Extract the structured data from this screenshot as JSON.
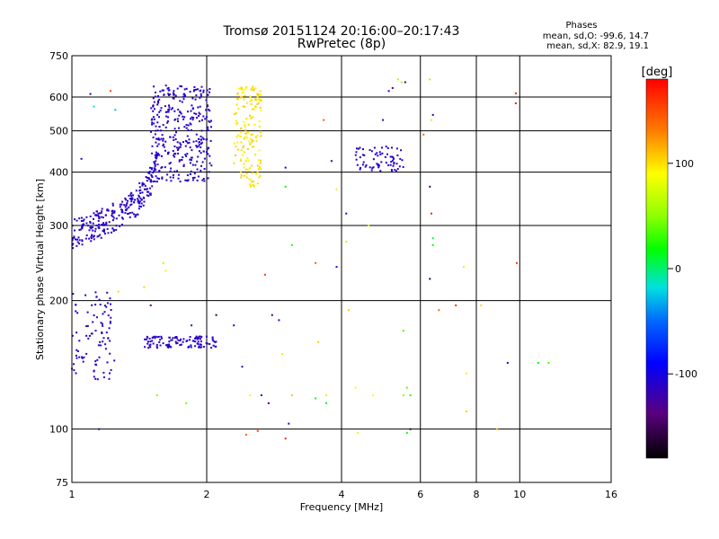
{
  "chart_data": {
    "type": "scatter",
    "title": "Tromsø 20151124 20:16:00–20:17:43",
    "subtitle": "RwPretec (8p)",
    "stats_title": "Phases",
    "stats_o": "mean, sd,O: -99.6, 14.7",
    "stats_x": "mean, sd,X:  82.9, 19.1",
    "xlabel": "Frequency [MHz]",
    "ylabel": "Stationary phase Virtual Height [km]",
    "x_scale": "log",
    "y_scale": "log",
    "xlim": [
      1,
      16
    ],
    "ylim": [
      75,
      750
    ],
    "x_ticks": [
      1,
      2,
      4,
      6,
      8,
      10,
      16
    ],
    "x_tick_labels": [
      "1",
      "2",
      "4",
      "6",
      "8",
      "10",
      "16"
    ],
    "y_ticks": [
      75,
      100,
      200,
      300,
      400,
      500,
      600,
      750
    ],
    "y_tick_labels": [
      "75",
      "100",
      "200",
      "300",
      "400",
      "500",
      "600",
      "750"
    ],
    "grid": true,
    "colorbar": {
      "label": "[deg]",
      "range": [
        -180,
        180
      ],
      "ticks": [
        100,
        0,
        -100
      ],
      "tick_labels": [
        "100",
        "0",
        "-100"
      ]
    },
    "clusters": [
      {
        "label": "O-trace lower (blue)",
        "x_range": [
          1.0,
          1.55
        ],
        "height_profile": [
          [
            1.0,
            285
          ],
          [
            1.1,
            295
          ],
          [
            1.2,
            305
          ],
          [
            1.3,
            320
          ],
          [
            1.4,
            340
          ],
          [
            1.5,
            380
          ],
          [
            1.55,
            420
          ]
        ],
        "phase": -110
      },
      {
        "label": "O-trace upper (blue)",
        "x_range": [
          1.5,
          2.05
        ],
        "y_range": [
          380,
          640
        ],
        "phase": -110
      },
      {
        "label": "O-trace low E (blue)",
        "x_range": [
          1.0,
          1.25
        ],
        "y_range": [
          130,
          210
        ],
        "phase": -110
      },
      {
        "label": "O-trace horizontal (blue)",
        "x_range": [
          1.45,
          2.1
        ],
        "y_range": [
          155,
          165
        ],
        "phase": -110
      },
      {
        "label": "X-trace (yellow)",
        "x_range": [
          2.3,
          2.65
        ],
        "y_range": [
          370,
          640
        ],
        "phase": 100
      },
      {
        "label": "F-echo 4.3-5.5 MHz (blue)",
        "x_range": [
          4.3,
          5.5
        ],
        "y_range": [
          400,
          460
        ],
        "phase": -110
      }
    ],
    "scatter_points": [
      {
        "x": 1.22,
        "y": 620,
        "phase": 150
      },
      {
        "x": 1.25,
        "y": 560,
        "phase": -20
      },
      {
        "x": 1.1,
        "y": 610,
        "phase": -110
      },
      {
        "x": 1.12,
        "y": 570,
        "phase": -20
      },
      {
        "x": 1.05,
        "y": 430,
        "phase": -110
      },
      {
        "x": 1.15,
        "y": 100,
        "phase": -110
      },
      {
        "x": 1.27,
        "y": 210,
        "phase": 100
      },
      {
        "x": 1.5,
        "y": 195,
        "phase": -150
      },
      {
        "x": 1.45,
        "y": 215,
        "phase": 100
      },
      {
        "x": 1.6,
        "y": 245,
        "phase": 60
      },
      {
        "x": 1.62,
        "y": 235,
        "phase": 100
      },
      {
        "x": 1.55,
        "y": 120,
        "phase": 40
      },
      {
        "x": 1.8,
        "y": 115,
        "phase": 40
      },
      {
        "x": 1.85,
        "y": 175,
        "phase": -110
      },
      {
        "x": 2.1,
        "y": 185,
        "phase": -150
      },
      {
        "x": 2.3,
        "y": 175,
        "phase": -110
      },
      {
        "x": 2.4,
        "y": 140,
        "phase": -110
      },
      {
        "x": 2.5,
        "y": 120,
        "phase": 100
      },
      {
        "x": 2.45,
        "y": 97,
        "phase": 140
      },
      {
        "x": 2.6,
        "y": 99,
        "phase": 160
      },
      {
        "x": 2.7,
        "y": 230,
        "phase": 160
      },
      {
        "x": 2.65,
        "y": 120,
        "phase": -110
      },
      {
        "x": 2.75,
        "y": 115,
        "phase": -110
      },
      {
        "x": 2.8,
        "y": 185,
        "phase": -150
      },
      {
        "x": 2.9,
        "y": 180,
        "phase": -110
      },
      {
        "x": 2.95,
        "y": 150,
        "phase": 100
      },
      {
        "x": 3.0,
        "y": 95,
        "phase": 160
      },
      {
        "x": 3.05,
        "y": 103,
        "phase": -110
      },
      {
        "x": 3.1,
        "y": 120,
        "phase": 100
      },
      {
        "x": 3.0,
        "y": 410,
        "phase": -110
      },
      {
        "x": 3.0,
        "y": 370,
        "phase": 20
      },
      {
        "x": 3.1,
        "y": 270,
        "phase": 20
      },
      {
        "x": 3.5,
        "y": 245,
        "phase": 140
      },
      {
        "x": 3.65,
        "y": 530,
        "phase": 150
      },
      {
        "x": 3.55,
        "y": 160,
        "phase": 100
      },
      {
        "x": 3.5,
        "y": 118,
        "phase": 10
      },
      {
        "x": 3.7,
        "y": 120,
        "phase": 100
      },
      {
        "x": 3.7,
        "y": 115,
        "phase": 10
      },
      {
        "x": 3.9,
        "y": 240,
        "phase": -110
      },
      {
        "x": 3.8,
        "y": 425,
        "phase": -110
      },
      {
        "x": 3.9,
        "y": 365,
        "phase": 100
      },
      {
        "x": 4.1,
        "y": 320,
        "phase": -110
      },
      {
        "x": 4.1,
        "y": 275,
        "phase": 60
      },
      {
        "x": 4.15,
        "y": 190,
        "phase": 100
      },
      {
        "x": 4.3,
        "y": 125,
        "phase": 80
      },
      {
        "x": 4.35,
        "y": 98,
        "phase": 80
      },
      {
        "x": 4.6,
        "y": 300,
        "phase": 80
      },
      {
        "x": 4.7,
        "y": 120,
        "phase": 80
      },
      {
        "x": 4.95,
        "y": 530,
        "phase": -110
      },
      {
        "x": 5.1,
        "y": 620,
        "phase": -110
      },
      {
        "x": 5.2,
        "y": 630,
        "phase": -150
      },
      {
        "x": 5.35,
        "y": 660,
        "phase": 60
      },
      {
        "x": 5.45,
        "y": 650,
        "phase": 60
      },
      {
        "x": 5.55,
        "y": 650,
        "phase": -150
      },
      {
        "x": 5.5,
        "y": 170,
        "phase": 40
      },
      {
        "x": 5.5,
        "y": 120,
        "phase": 40
      },
      {
        "x": 5.6,
        "y": 125,
        "phase": 40
      },
      {
        "x": 5.7,
        "y": 120,
        "phase": 20
      },
      {
        "x": 5.6,
        "y": 98,
        "phase": 20
      },
      {
        "x": 5.7,
        "y": 100,
        "phase": -150
      },
      {
        "x": 6.1,
        "y": 490,
        "phase": 140
      },
      {
        "x": 6.3,
        "y": 660,
        "phase": 60
      },
      {
        "x": 6.35,
        "y": 530,
        "phase": 80
      },
      {
        "x": 6.4,
        "y": 545,
        "phase": -110
      },
      {
        "x": 6.3,
        "y": 370,
        "phase": -150
      },
      {
        "x": 6.35,
        "y": 320,
        "phase": 160
      },
      {
        "x": 6.4,
        "y": 280,
        "phase": 20
      },
      {
        "x": 6.4,
        "y": 270,
        "phase": 20
      },
      {
        "x": 6.3,
        "y": 225,
        "phase": -150
      },
      {
        "x": 6.6,
        "y": 190,
        "phase": 140
      },
      {
        "x": 7.2,
        "y": 195,
        "phase": 160
      },
      {
        "x": 7.5,
        "y": 240,
        "phase": 100
      },
      {
        "x": 7.6,
        "y": 135,
        "phase": 100
      },
      {
        "x": 7.6,
        "y": 110,
        "phase": 100
      },
      {
        "x": 8.2,
        "y": 195,
        "phase": 110
      },
      {
        "x": 8.9,
        "y": 100,
        "phase": 110
      },
      {
        "x": 9.4,
        "y": 143,
        "phase": -110
      },
      {
        "x": 9.8,
        "y": 612,
        "phase": 160
      },
      {
        "x": 9.8,
        "y": 580,
        "phase": 170
      },
      {
        "x": 9.85,
        "y": 245,
        "phase": 160
      },
      {
        "x": 11.0,
        "y": 143,
        "phase": 20
      },
      {
        "x": 11.6,
        "y": 143,
        "phase": 40
      }
    ]
  }
}
